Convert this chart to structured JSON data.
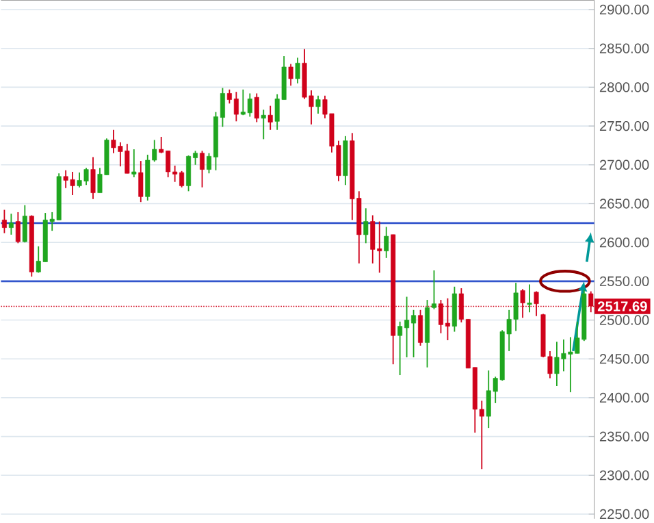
{
  "chart_data": {
    "type": "candlestick",
    "categories": [
      null,
      null,
      null,
      null,
      null,
      null,
      null,
      null,
      null,
      null,
      null,
      null,
      null,
      null,
      null,
      null,
      null,
      null,
      null,
      null,
      null,
      null,
      null,
      null,
      null,
      null,
      null,
      null,
      null,
      null,
      null,
      null,
      null,
      null,
      null,
      null,
      null,
      null,
      null,
      null,
      null,
      null,
      null,
      null,
      null,
      null,
      null,
      null,
      null,
      null,
      null,
      null,
      null,
      null,
      null,
      null,
      null,
      null,
      null,
      null,
      null,
      null,
      null,
      null,
      null,
      null,
      null,
      null,
      null,
      null,
      null,
      null,
      null,
      null,
      null,
      null,
      null,
      null,
      null,
      null,
      null,
      null,
      null,
      null,
      null,
      null,
      null
    ],
    "ohlc": [
      [
        2629,
        2642,
        2612,
        2619
      ],
      [
        2619,
        2637,
        2610,
        2625
      ],
      [
        2627,
        2639,
        2599,
        2601
      ],
      [
        2601,
        2648,
        2600,
        2634
      ],
      [
        2634,
        2635,
        2556,
        2562
      ],
      [
        2562,
        2595,
        2561,
        2576
      ],
      [
        2575,
        2638,
        2575,
        2629
      ],
      [
        2627,
        2639,
        2615,
        2630
      ],
      [
        2629,
        2689,
        2629,
        2685
      ],
      [
        2685,
        2693,
        2670,
        2680
      ],
      [
        2681,
        2691,
        2661,
        2673
      ],
      [
        2673,
        2690,
        2671,
        2680
      ],
      [
        2679,
        2696,
        2674,
        2694
      ],
      [
        2694,
        2710,
        2656,
        2664
      ],
      [
        2664,
        2696,
        2664,
        2688
      ],
      [
        2687,
        2734,
        2687,
        2732
      ],
      [
        2732,
        2745,
        2715,
        2722
      ],
      [
        2724,
        2729,
        2698,
        2717
      ],
      [
        2718,
        2727,
        2689,
        2689
      ],
      [
        2688,
        2720,
        2684,
        2691
      ],
      [
        2690,
        2705,
        2652,
        2659
      ],
      [
        2659,
        2713,
        2654,
        2706
      ],
      [
        2706,
        2732,
        2704,
        2720
      ],
      [
        2720,
        2736,
        2715,
        2716
      ],
      [
        2718,
        2718,
        2684,
        2691
      ],
      [
        2691,
        2699,
        2678,
        2688
      ],
      [
        2690,
        2692,
        2671,
        2673
      ],
      [
        2673,
        2712,
        2666,
        2711
      ],
      [
        2709,
        2718,
        2700,
        2715
      ],
      [
        2715,
        2718,
        2671,
        2694
      ],
      [
        2694,
        2715,
        2689,
        2711
      ],
      [
        2710,
        2768,
        2693,
        2762
      ],
      [
        2761,
        2799,
        2749,
        2792
      ],
      [
        2792,
        2797,
        2779,
        2784
      ],
      [
        2785,
        2794,
        2756,
        2765
      ],
      [
        2765,
        2797,
        2764,
        2768
      ],
      [
        2767,
        2792,
        2762,
        2785
      ],
      [
        2787,
        2792,
        2755,
        2760
      ],
      [
        2760,
        2771,
        2733,
        2764
      ],
      [
        2764,
        2776,
        2745,
        2755
      ],
      [
        2756,
        2791,
        2745,
        2785
      ],
      [
        2784,
        2840,
        2784,
        2826
      ],
      [
        2826,
        2830,
        2802,
        2811
      ],
      [
        2811,
        2838,
        2805,
        2831
      ],
      [
        2831,
        2849,
        2785,
        2787
      ],
      [
        2789,
        2796,
        2752,
        2775
      ],
      [
        2775,
        2789,
        2766,
        2784
      ],
      [
        2784,
        2789,
        2760,
        2765
      ],
      [
        2766,
        2766,
        2716,
        2724
      ],
      [
        2725,
        2731,
        2679,
        2686
      ],
      [
        2686,
        2737,
        2674,
        2731
      ],
      [
        2731,
        2741,
        2629,
        2656
      ],
      [
        2657,
        2666,
        2573,
        2610
      ],
      [
        2610,
        2644,
        2599,
        2627
      ],
      [
        2627,
        2635,
        2573,
        2591
      ],
      [
        2592,
        2627,
        2561,
        2589
      ],
      [
        2589,
        2620,
        2580,
        2608
      ],
      [
        2610,
        2610,
        2443,
        2480
      ],
      [
        2480,
        2498,
        2429,
        2492
      ],
      [
        2490,
        2530,
        2452,
        2500
      ],
      [
        2496,
        2513,
        2452,
        2506
      ],
      [
        2506,
        2513,
        2467,
        2471
      ],
      [
        2471,
        2526,
        2439,
        2516
      ],
      [
        2516,
        2564,
        2514,
        2521
      ],
      [
        2521,
        2526,
        2483,
        2494
      ],
      [
        2496,
        2528,
        2474,
        2492
      ],
      [
        2492,
        2543,
        2485,
        2534
      ],
      [
        2534,
        2541,
        2497,
        2501
      ],
      [
        2501,
        2501,
        2438,
        2438
      ],
      [
        2439,
        2439,
        2355,
        2385
      ],
      [
        2385,
        2396,
        2308,
        2376
      ],
      [
        2376,
        2435,
        2361,
        2409
      ],
      [
        2408,
        2427,
        2393,
        2425
      ],
      [
        2423,
        2487,
        2422,
        2485
      ],
      [
        2482,
        2513,
        2460,
        2501
      ],
      [
        2501,
        2548,
        2486,
        2535
      ],
      [
        2538,
        2540,
        2503,
        2522
      ],
      [
        2520,
        2546,
        2510,
        2522
      ],
      [
        2536,
        2537,
        2505,
        2521
      ],
      [
        2507,
        2508,
        2452,
        2453
      ],
      [
        2453,
        2460,
        2425,
        2431
      ],
      [
        2431,
        2472,
        2415,
        2452
      ],
      [
        2450,
        2475,
        2434,
        2457
      ],
      [
        2456,
        2478,
        2407,
        2459
      ],
      [
        2457,
        2498,
        2457,
        2477
      ],
      [
        2475,
        2539,
        2473,
        2534
      ],
      [
        2534,
        2537,
        2510,
        2518
      ]
    ],
    "ylim": [
      2244,
      2912
    ],
    "yticks": [
      {
        "value": 2250,
        "label": "2250.00"
      },
      {
        "value": 2300,
        "label": "2300.00"
      },
      {
        "value": 2350,
        "label": "2350.00"
      },
      {
        "value": 2400,
        "label": "2400.00"
      },
      {
        "value": 2450,
        "label": "2450.00"
      },
      {
        "value": 2500,
        "label": "2500.00"
      },
      {
        "value": 2550,
        "label": "2550.00"
      },
      {
        "value": 2600,
        "label": "2600.00"
      },
      {
        "value": 2650,
        "label": "2650.00"
      },
      {
        "value": 2700,
        "label": "2700.00"
      },
      {
        "value": 2750,
        "label": "2750.00"
      },
      {
        "value": 2800,
        "label": "2800.00"
      },
      {
        "value": 2850,
        "label": "2850.00"
      },
      {
        "value": 2900,
        "label": "2900.00"
      }
    ],
    "ref_lines": [
      {
        "axis": "y",
        "value": 2517.69,
        "label": "2517.69",
        "color": "#d0021b",
        "line_style": "dotted"
      },
      {
        "axis": "y",
        "value": 2625,
        "color": "#3355cc",
        "line_style": "solid"
      },
      {
        "axis": "y",
        "value": 2550,
        "color": "#3355cc",
        "line_style": "solid"
      }
    ],
    "grid": "y",
    "tick_labels": "y"
  }
}
